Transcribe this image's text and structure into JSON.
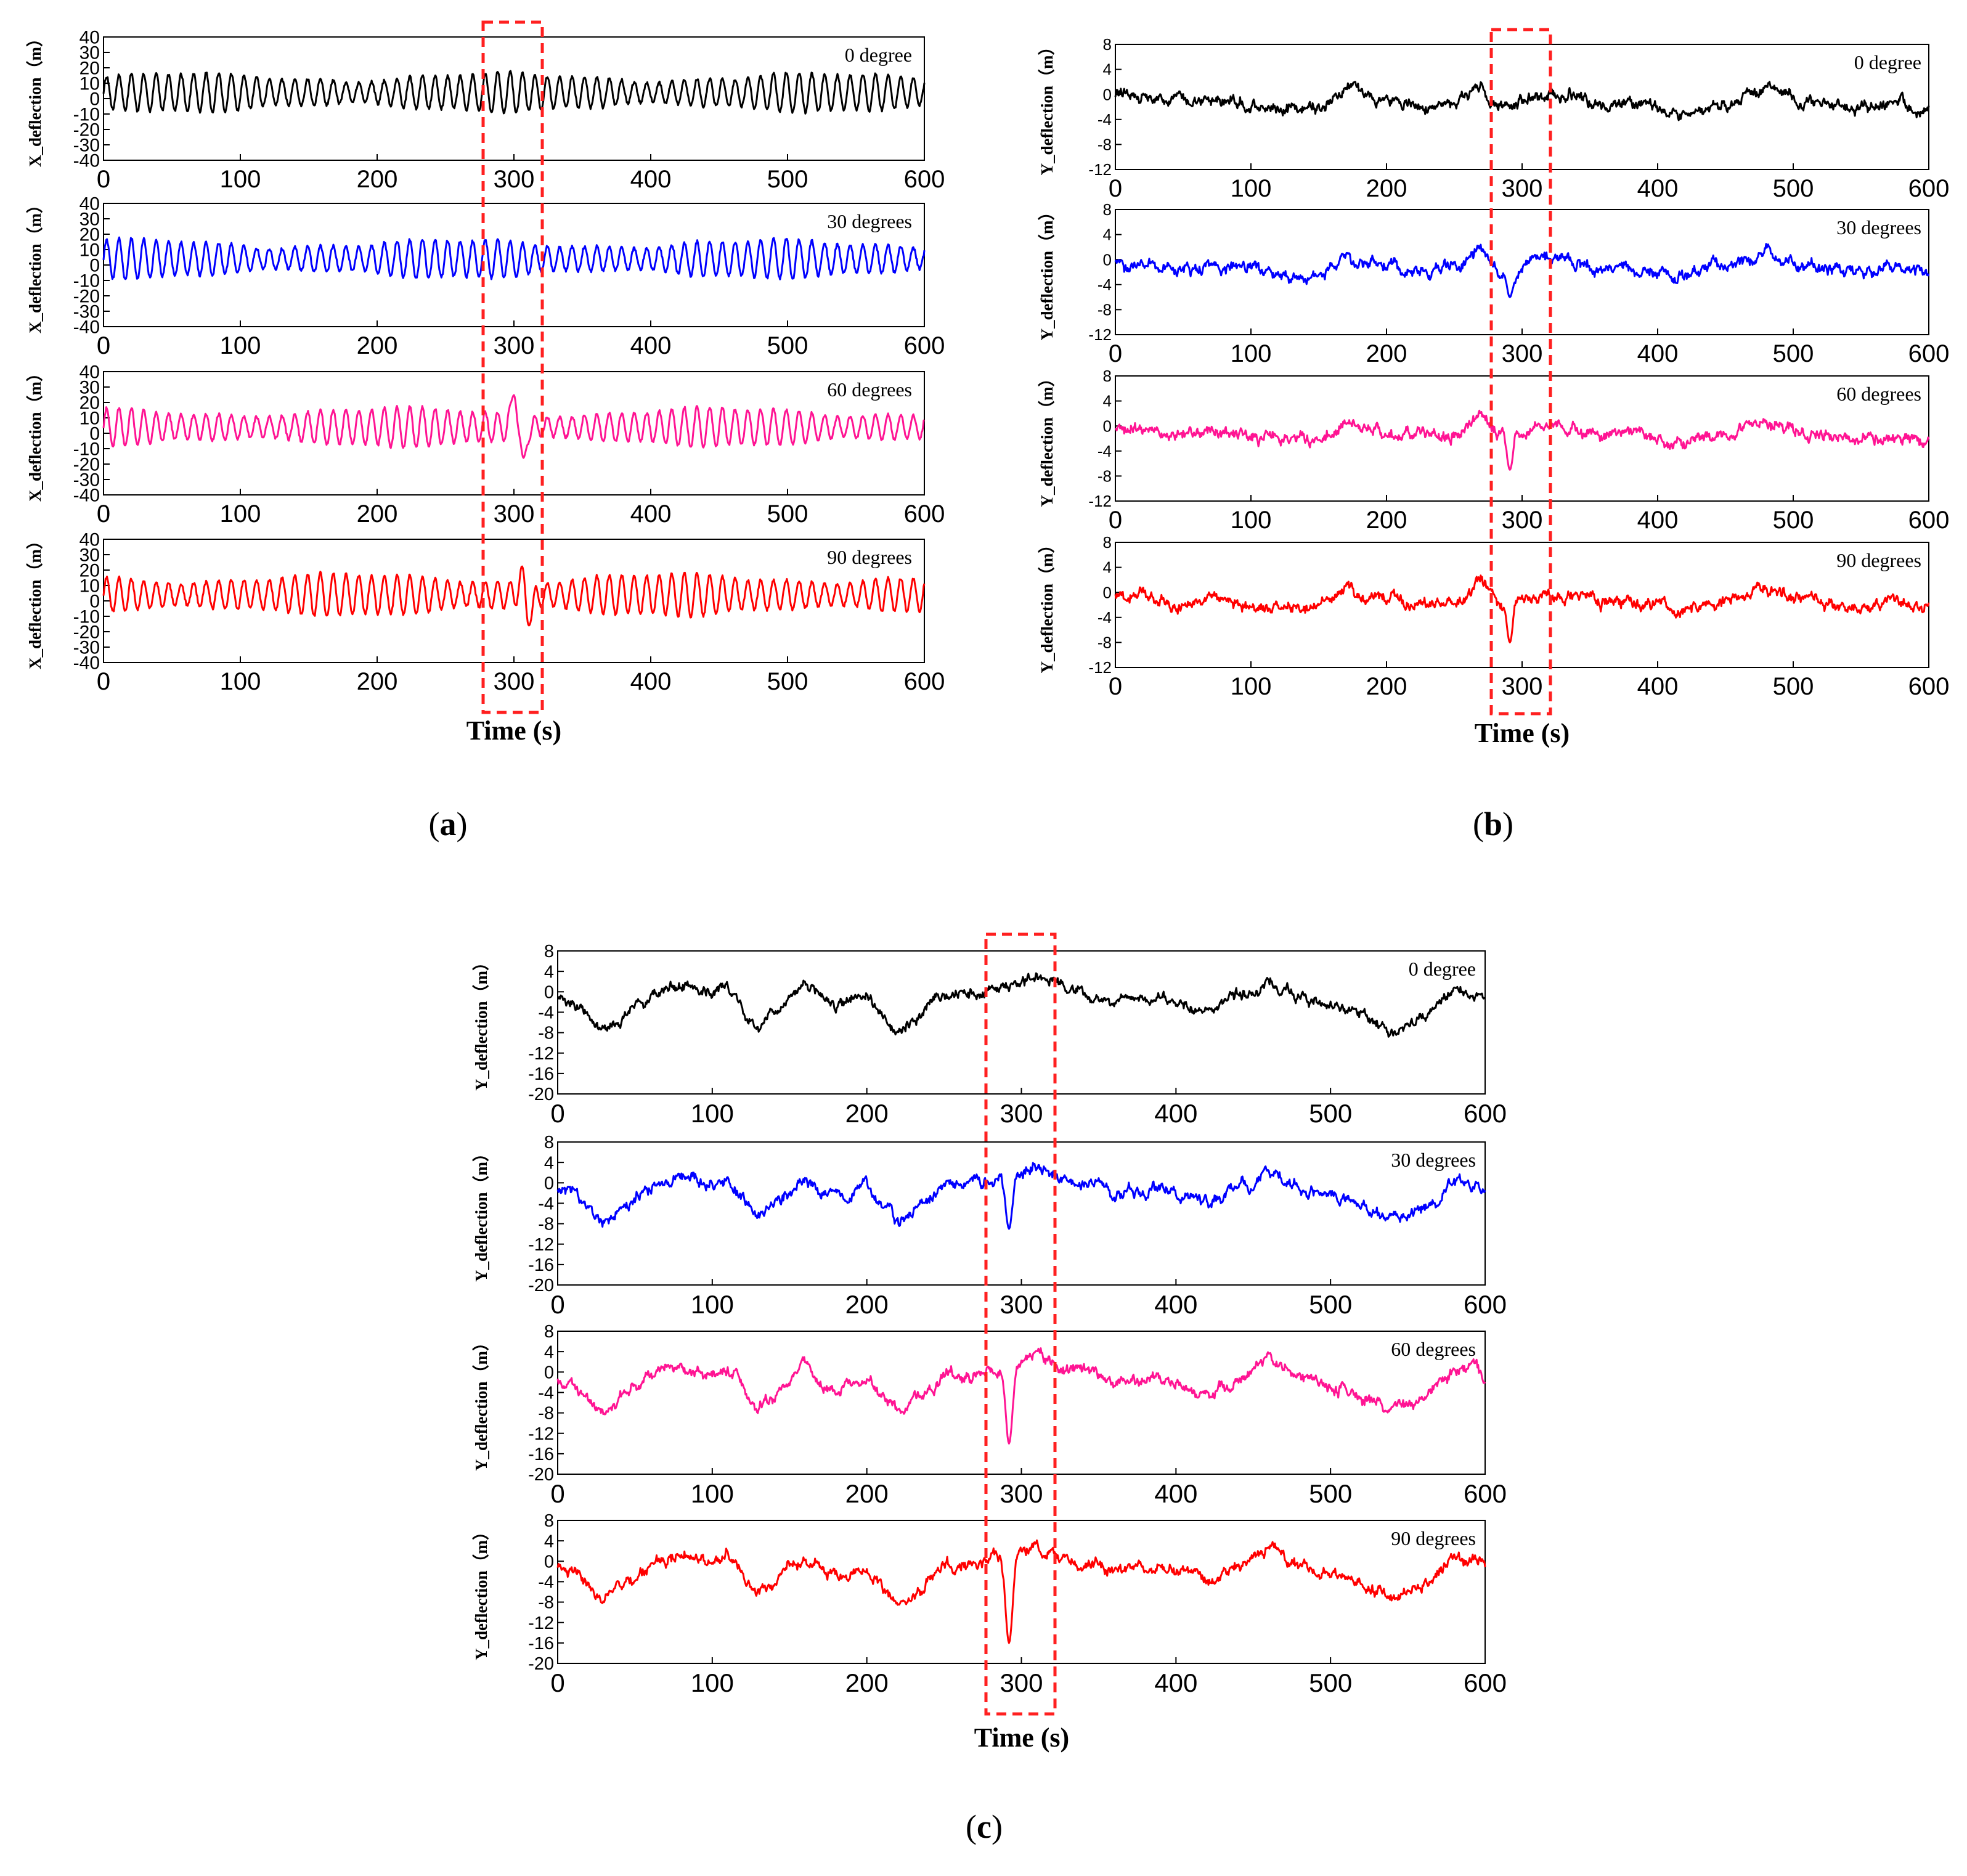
{
  "figure": {
    "panels": [
      {
        "id": "a",
        "caption_letter": "a",
        "ylabel": "X_deflection（m）",
        "xlabel": "Time (s)"
      },
      {
        "id": "b",
        "caption_letter": "b",
        "ylabel": "Y_deflection（m）",
        "xlabel": "Time (s)"
      },
      {
        "id": "c",
        "caption_letter": "c",
        "ylabel": "Y_deflection（m）",
        "xlabel": "Time (s)"
      }
    ]
  },
  "colors": {
    "0 degree": "#000000",
    "30 degrees": "#0000ff",
    "60 degrees": "#ff1493",
    "90 degrees": "#ff0000",
    "highlight": "#ff2020"
  },
  "chart_data": [
    {
      "panel": "a",
      "type": "line",
      "title": "",
      "xlabel": "Time (s)",
      "ylabel": "X_deflection（m）",
      "xlim": [
        0,
        600
      ],
      "ylim": [
        -40,
        40
      ],
      "xticks": [
        0,
        100,
        200,
        300,
        400,
        500,
        600
      ],
      "yticks": [
        40,
        30,
        20,
        10,
        0,
        -10,
        -20,
        -30,
        -40
      ],
      "highlight_range": [
        278,
        322
      ],
      "series": [
        {
          "name": "0 degree",
          "kind": "osc",
          "base": 4,
          "amp": 12,
          "period": 9.2,
          "noise": 2,
          "events": []
        },
        {
          "name": "30 degrees",
          "kind": "osc",
          "base": 4,
          "amp": 12,
          "period": 9.2,
          "noise": 2,
          "events": []
        },
        {
          "name": "60 degrees",
          "kind": "osc",
          "base": 4,
          "amp": 12,
          "period": 9.2,
          "noise": 2,
          "events": [
            {
              "t": 300,
              "value": 25
            },
            {
              "t": 307,
              "value": -16
            }
          ]
        },
        {
          "name": "90 degrees",
          "kind": "osc",
          "base": 4,
          "amp": 13,
          "period": 9.2,
          "noise": 2,
          "events": [
            {
              "t": 307,
              "value": 27
            },
            {
              "t": 311,
              "value": -16
            }
          ]
        }
      ]
    },
    {
      "panel": "b",
      "type": "line",
      "title": "",
      "xlabel": "Time (s)",
      "ylabel": "Y_deflection（m）",
      "xlim": [
        0,
        600
      ],
      "ylim": [
        -12,
        8
      ],
      "xticks": [
        0,
        100,
        200,
        300,
        400,
        500,
        600
      ],
      "yticks": [
        8,
        4,
        0,
        -4,
        -8,
        -12
      ],
      "highlight_range": [
        278,
        322
      ],
      "keypoints": {
        "t": [
          0,
          30,
          60,
          90,
          120,
          150,
          170,
          190,
          230,
          255,
          270,
          282,
          300,
          320,
          360,
          400,
          420,
          450,
          480,
          500,
          540,
          570,
          600
        ],
        "v": [
          0,
          -1,
          -1.5,
          -1.5,
          -2.5,
          -2.5,
          0.5,
          -1,
          -2,
          -1,
          2,
          -2,
          -1,
          0,
          -1.5,
          -2,
          -3,
          -1,
          1,
          -0.5,
          -2.5,
          -1.5,
          -2.5
        ]
      },
      "series": [
        {
          "name": "0 degree",
          "noise": 1.1,
          "events": []
        },
        {
          "name": "30 degrees",
          "noise": 1.1,
          "events": [
            {
              "t": 291,
              "value": -6
            }
          ]
        },
        {
          "name": "60 degrees",
          "noise": 1.1,
          "events": [
            {
              "t": 291,
              "value": -7
            }
          ]
        },
        {
          "name": "90 degrees",
          "noise": 1.1,
          "events": [
            {
              "t": 291,
              "value": -8
            }
          ]
        }
      ]
    },
    {
      "panel": "c",
      "type": "line",
      "title": "",
      "xlabel": "Time (s)",
      "ylabel": "Y_deflection（m）",
      "xlim": [
        0,
        600
      ],
      "ylim": [
        -20,
        8
      ],
      "xticks": [
        0,
        100,
        200,
        300,
        400,
        500,
        600
      ],
      "yticks": [
        8,
        4,
        0,
        -4,
        -8,
        -12,
        -16,
        -20
      ],
      "highlight_range": [
        278,
        322
      ],
      "keypoints": {
        "t": [
          0,
          15,
          30,
          55,
          80,
          100,
          110,
          130,
          160,
          180,
          200,
          220,
          250,
          280,
          310,
          330,
          360,
          390,
          420,
          440,
          460,
          480,
          510,
          540,
          560,
          580,
          600
        ],
        "v": [
          -1,
          -3,
          -8,
          -2,
          2,
          -1,
          1.5,
          -7,
          1,
          -3,
          -1,
          -8,
          -1,
          0,
          3,
          1,
          -2,
          -1,
          -4,
          -1,
          2,
          -1,
          -3,
          -7,
          -5,
          1,
          -1
        ]
      },
      "series": [
        {
          "name": "0 degree",
          "noise": 1.3,
          "events": []
        },
        {
          "name": "30 degrees",
          "noise": 1.4,
          "events": [
            {
              "t": 292,
              "value": -9
            }
          ]
        },
        {
          "name": "60 degrees",
          "noise": 1.4,
          "events": [
            {
              "t": 292,
              "value": -14
            }
          ]
        },
        {
          "name": "90 degrees",
          "noise": 1.4,
          "events": [
            {
              "t": 292,
              "value": -16
            }
          ]
        }
      ]
    }
  ]
}
